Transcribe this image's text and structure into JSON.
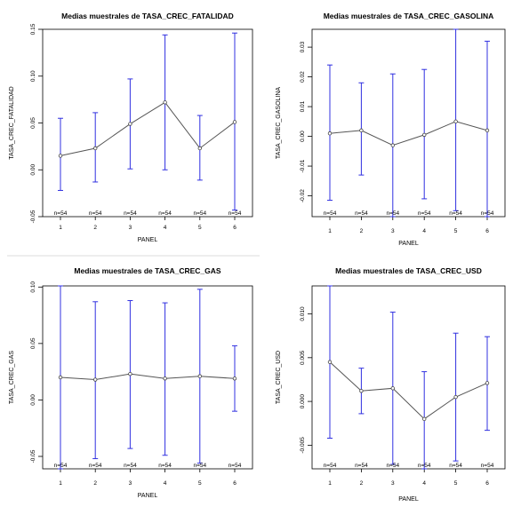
{
  "chart_data": [
    {
      "type": "line",
      "title": "Medias muestrales de TASA_CREC_FATALIDAD",
      "xlabel": "PANEL",
      "ylabel": "TASA_CREC_FATALIDAD",
      "x": [
        1,
        2,
        3,
        4,
        5,
        6
      ],
      "xtick_labels": [
        "1",
        "2",
        "3",
        "4",
        "5",
        "6"
      ],
      "means": [
        0.015,
        0.023,
        0.049,
        0.072,
        0.023,
        0.051
      ],
      "lower": [
        -0.022,
        -0.013,
        0.001,
        0.0,
        -0.011,
        -0.043
      ],
      "upper": [
        0.055,
        0.061,
        0.097,
        0.144,
        0.058,
        0.146
      ],
      "n_labels": [
        "n=54",
        "n=54",
        "n=54",
        "n=54",
        "n=54",
        "n=54"
      ],
      "ylim": [
        -0.05,
        0.15
      ],
      "yticks": [
        -0.05,
        0.0,
        0.05,
        0.1,
        0.15
      ],
      "ytick_labels": [
        "-0.05",
        "0.00",
        "0.05",
        "0.10",
        "0.15"
      ],
      "colors": {
        "bars": "#3030e0",
        "line": "#555555"
      }
    },
    {
      "type": "line",
      "title": "Medias muestrales de TASA_CREC_GASOLINA",
      "xlabel": "PANEL",
      "ylabel": "TASA_CREC_GASOLINA",
      "x": [
        1,
        2,
        3,
        4,
        5,
        6
      ],
      "xtick_labels": [
        "1",
        "2",
        "3",
        "4",
        "5",
        "6"
      ],
      "means": [
        0.001,
        0.002,
        -0.003,
        0.0005,
        0.005,
        0.002
      ],
      "lower": [
        -0.0215,
        -0.013,
        -0.027,
        -0.021,
        -0.025,
        -0.027
      ],
      "upper": [
        0.024,
        0.018,
        0.021,
        0.0225,
        0.036,
        0.032
      ],
      "n_labels": [
        "n=54",
        "n=54",
        "n=54",
        "n=54",
        "n=54",
        "n=54"
      ],
      "ylim": [
        -0.027,
        0.036
      ],
      "yticks": [
        -0.02,
        -0.01,
        0.0,
        0.01,
        0.02,
        0.03
      ],
      "ytick_labels": [
        "-0.02",
        "-0.01",
        "0.00",
        "0.01",
        "0.02",
        "0.03"
      ],
      "colors": {
        "bars": "#3030e0",
        "line": "#555555"
      }
    },
    {
      "type": "line",
      "title": "Medias muestrales de TASA_CREC_GAS",
      "xlabel": "PANEL",
      "ylabel": "TASA_CREC_GAS",
      "x": [
        1,
        2,
        3,
        4,
        5,
        6
      ],
      "xtick_labels": [
        "1",
        "2",
        "3",
        "4",
        "5",
        "6"
      ],
      "means": [
        0.02,
        0.018,
        0.023,
        0.019,
        0.021,
        0.019
      ],
      "lower": [
        -0.061,
        -0.052,
        -0.043,
        -0.049,
        -0.056,
        -0.01
      ],
      "upper": [
        0.101,
        0.087,
        0.088,
        0.086,
        0.098,
        0.048
      ],
      "n_labels": [
        "n=54",
        "n=54",
        "n=54",
        "n=54",
        "n=54",
        "n=54"
      ],
      "ylim": [
        -0.061,
        0.101
      ],
      "yticks": [
        -0.05,
        0.0,
        0.05,
        0.1
      ],
      "ytick_labels": [
        "-0.05",
        "0.00",
        "0.05",
        "0.10"
      ],
      "colors": {
        "bars": "#3030e0",
        "line": "#555555"
      }
    },
    {
      "type": "line",
      "title": "Medias muestrales de TASA_CREC_USD",
      "xlabel": "PANEL",
      "ylabel": "TASA_CREC_USD",
      "x": [
        1,
        2,
        3,
        4,
        5,
        6
      ],
      "xtick_labels": [
        "1",
        "2",
        "3",
        "4",
        "5",
        "6"
      ],
      "means": [
        0.0045,
        0.0012,
        0.0015,
        -0.002,
        0.0005,
        0.0021
      ],
      "lower": [
        -0.0042,
        -0.0014,
        -0.0072,
        -0.0077,
        -0.0068,
        -0.0033
      ],
      "upper": [
        0.0132,
        0.0038,
        0.0102,
        0.0034,
        0.0078,
        0.0074
      ],
      "n_labels": [
        "n=54",
        "n=54",
        "n=54",
        "n=54",
        "n=54",
        "n=54"
      ],
      "ylim": [
        -0.0077,
        0.0132
      ],
      "yticks": [
        -0.005,
        0.0,
        0.005,
        0.01
      ],
      "ytick_labels": [
        "-0.005",
        "0.000",
        "0.005",
        "0.010"
      ],
      "colors": {
        "bars": "#3030e0",
        "line": "#555555"
      }
    }
  ]
}
